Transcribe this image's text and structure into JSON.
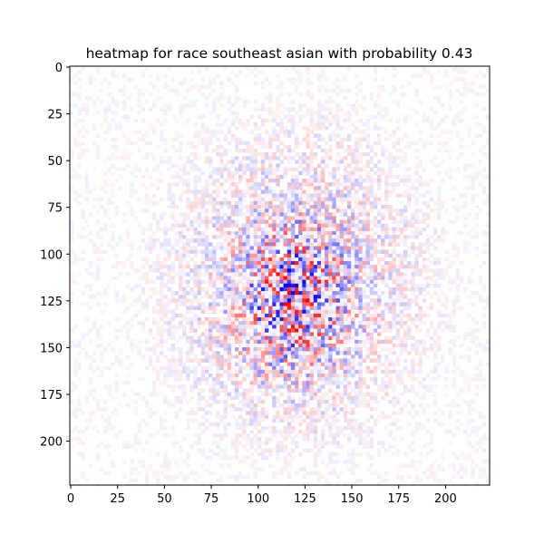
{
  "chart_data": {
    "type": "heatmap",
    "title": "heatmap for race southeast asian with probability 0.43",
    "xlabel": "",
    "ylabel": "",
    "xlim": [
      -0.5,
      223.5
    ],
    "ylim": [
      223.5,
      -0.5
    ],
    "x_ticks": [
      0,
      25,
      50,
      75,
      100,
      125,
      150,
      175,
      200
    ],
    "x_tick_labels": [
      "0",
      "25",
      "50",
      "75",
      "100",
      "125",
      "150",
      "175",
      "200"
    ],
    "y_ticks": [
      0,
      25,
      50,
      75,
      100,
      125,
      150,
      175,
      200
    ],
    "y_tick_labels": [
      "0",
      "25",
      "50",
      "75",
      "100",
      "125",
      "150",
      "175",
      "200"
    ],
    "grid": false,
    "colormap": "bwr",
    "colormap_stops": [
      "#0000ff",
      "#ffffff",
      "#ff0000"
    ],
    "value_range": [
      -1,
      1
    ],
    "matrix_size": [
      224,
      224
    ]
  }
}
